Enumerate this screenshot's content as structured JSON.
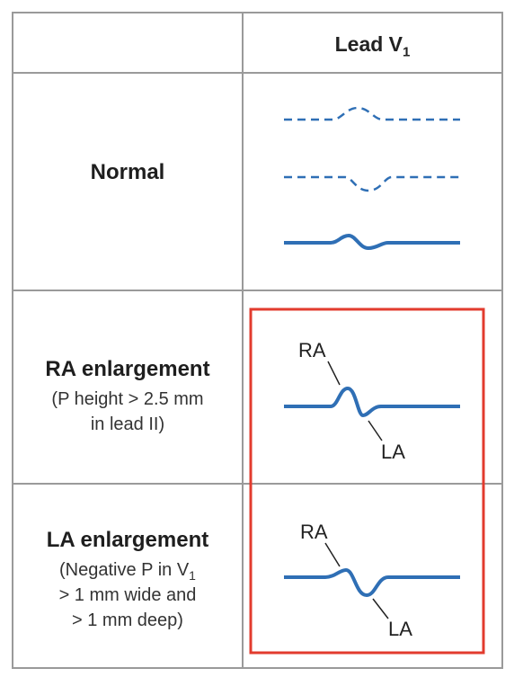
{
  "header": {
    "lead_prefix": "Lead V",
    "lead_subscript": "1"
  },
  "rows": [
    {
      "title": "Normal",
      "subtitle_lines": []
    },
    {
      "title": "RA enlargement",
      "subtitle_lines": [
        "(P height > 2.5 mm",
        "in lead II)"
      ]
    },
    {
      "title": "LA enlargement",
      "subtitle_line1_prefix": "(Negative P in V",
      "subtitle_line1_subscript": "1",
      "subtitle_lines": [
        "> 1 mm wide and",
        "> 1 mm deep)"
      ]
    }
  ],
  "waveform_labels": {
    "ra": "RA",
    "la": "LA"
  },
  "colors": {
    "waveform": "#2f6fb5",
    "highlight_box": "#e23b2e",
    "grid": "#9a9a9a"
  }
}
